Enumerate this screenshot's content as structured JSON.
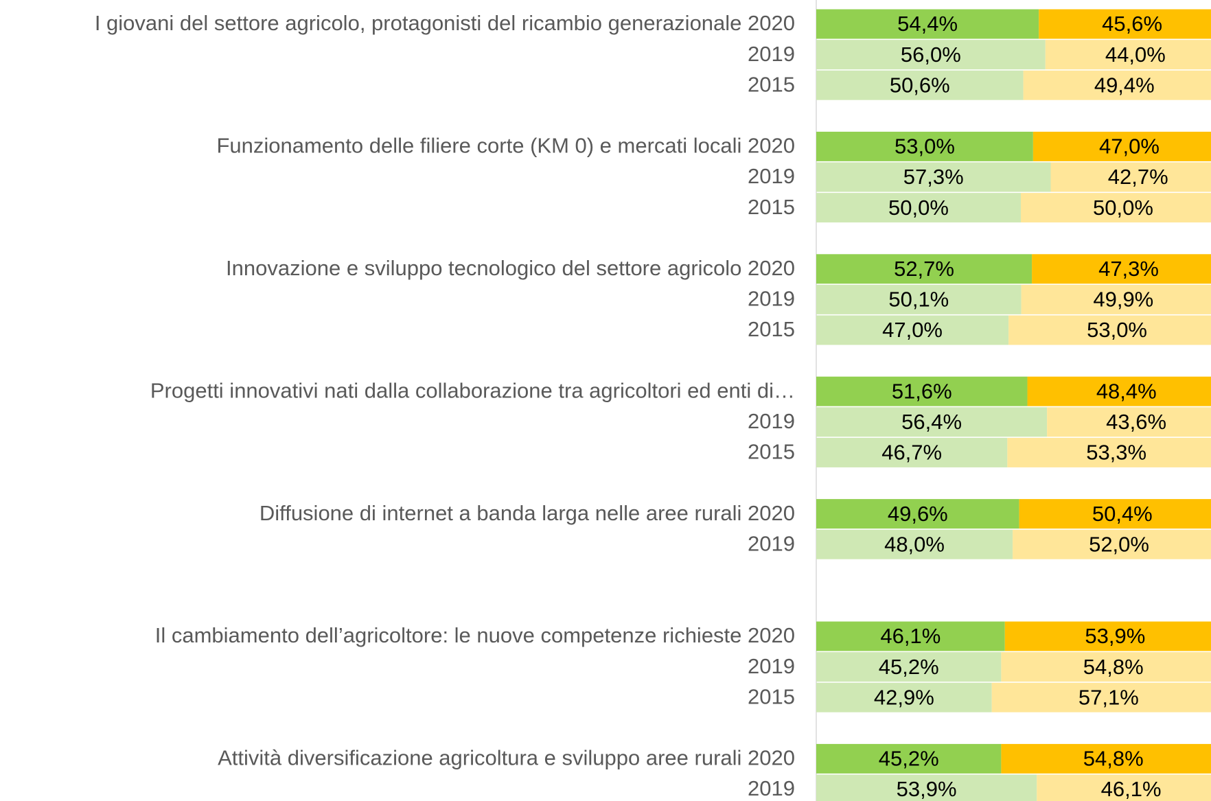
{
  "chart_data": {
    "type": "stacked_barh",
    "categories": [
      "I giovani del settore agricolo, protagonisti del ricambio generazionale 2020",
      "2019",
      "2015",
      null,
      "Funzionamento delle filiere corte (KM 0) e mercati locali 2020",
      "2019",
      "2015",
      null,
      "Innovazione e sviluppo tecnologico del settore agricolo 2020",
      "2019",
      "2015",
      null,
      "Progetti innovativi nati dalla collaborazione tra agricoltori ed enti di…",
      "2019",
      "2015",
      null,
      "Diffusione di internet a banda larga nelle aree rurali 2020",
      "2019",
      null,
      null,
      "Il cambiamento dell’agricoltore: le nuove competenze richieste 2020",
      "2019",
      "2015",
      null,
      "Attività diversificazione agricoltura e sviluppo aree rurali 2020",
      "2019"
    ],
    "series": [
      {
        "values": [
          54.4,
          56.0,
          50.6,
          null,
          53.0,
          57.3,
          50.0,
          null,
          52.7,
          50.1,
          47.0,
          null,
          51.6,
          56.4,
          46.7,
          null,
          49.6,
          48.0,
          null,
          null,
          46.1,
          45.2,
          42.9,
          null,
          45.2,
          53.9
        ],
        "value_labels": [
          "54,4%",
          "56,0%",
          "50,6%",
          null,
          "53,0%",
          "57,3%",
          "50,0%",
          null,
          "52,7%",
          "50,1%",
          "47,0%",
          null,
          "51,6%",
          "56,4%",
          "46,7%",
          null,
          "49,6%",
          "48,0%",
          null,
          null,
          "46,1%",
          "45,2%",
          "42,9%",
          null,
          "45,2%",
          "53,9%"
        ],
        "colors": [
          "#92d050",
          "#cfe8b4",
          "#cfe8b4",
          null,
          "#92d050",
          "#cfe8b4",
          "#cfe8b4",
          null,
          "#92d050",
          "#cfe8b4",
          "#cfe8b4",
          null,
          "#92d050",
          "#cfe8b4",
          "#cfe8b4",
          null,
          "#92d050",
          "#cfe8b4",
          null,
          null,
          "#92d050",
          "#cfe8b4",
          "#cfe8b4",
          null,
          "#92d050",
          "#cfe8b4"
        ]
      },
      {
        "values": [
          45.6,
          44.0,
          49.4,
          null,
          47.0,
          42.7,
          50.0,
          null,
          47.3,
          49.9,
          53.0,
          null,
          48.4,
          43.6,
          53.3,
          null,
          50.4,
          52.0,
          null,
          null,
          53.9,
          54.8,
          57.1,
          null,
          54.8,
          46.1
        ],
        "value_labels": [
          "45,6%",
          "44,0%",
          "49,4%",
          null,
          "47,0%",
          "42,7%",
          "50,0%",
          null,
          "47,3%",
          "49,9%",
          "53,0%",
          null,
          "48,4%",
          "43,6%",
          "53,3%",
          null,
          "50,4%",
          "52,0%",
          null,
          null,
          "53,9%",
          "54,8%",
          "57,1%",
          null,
          "54,8%",
          "46,1%"
        ],
        "colors": [
          "#ffc000",
          "#ffe699",
          "#ffe699",
          null,
          "#ffc000",
          "#ffe699",
          "#ffe699",
          null,
          "#ffc000",
          "#ffe699",
          "#ffe699",
          null,
          "#ffc000",
          "#ffe699",
          "#ffe699",
          null,
          "#ffc000",
          "#ffe699",
          null,
          null,
          "#ffc000",
          "#ffe699",
          "#ffe699",
          null,
          "#ffc000",
          "#ffe699"
        ]
      }
    ],
    "xlim": [
      0,
      100
    ]
  }
}
